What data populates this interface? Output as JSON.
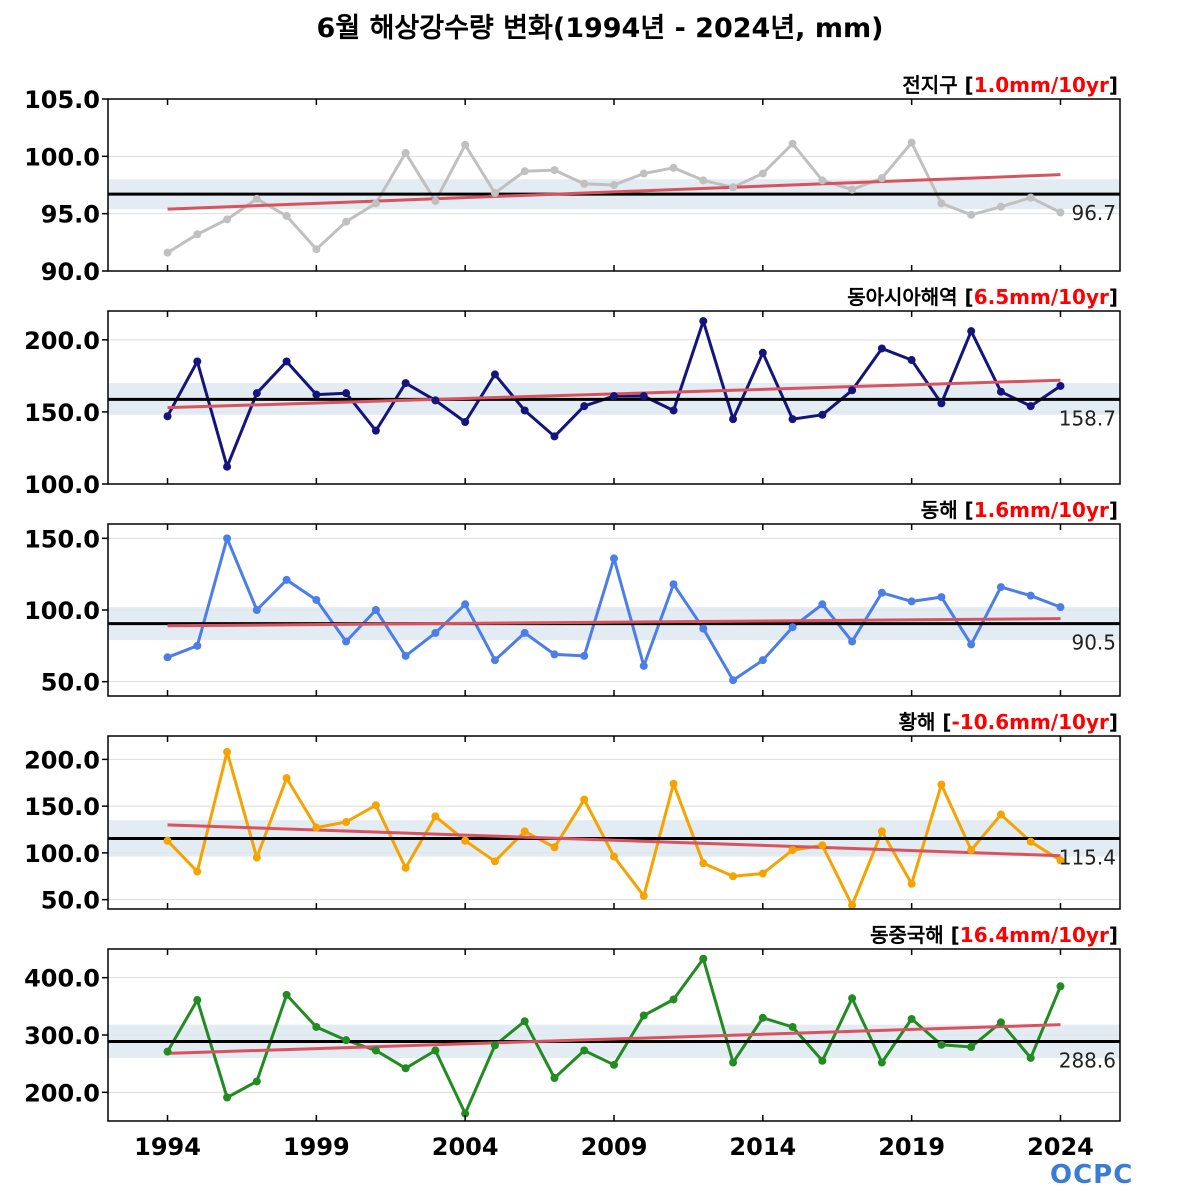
{
  "title": "6월 해상강수량 변화(1994년 - 2024년, mm)",
  "logo": "OCPC",
  "chart_data": {
    "type": "line",
    "x": [
      1994,
      1995,
      1996,
      1997,
      1998,
      1999,
      2000,
      2001,
      2002,
      2003,
      2004,
      2005,
      2006,
      2007,
      2008,
      2009,
      2010,
      2011,
      2012,
      2013,
      2014,
      2015,
      2016,
      2017,
      2018,
      2019,
      2020,
      2021,
      2022,
      2023,
      2024
    ],
    "xticks": [
      "1994",
      "1999",
      "2004",
      "2009",
      "2014",
      "2019",
      "2024"
    ],
    "xtick_values": [
      1994,
      1999,
      2004,
      2009,
      2014,
      2019,
      2024
    ],
    "xlim": [
      1992,
      2026
    ],
    "panels": [
      {
        "name": "전지구",
        "trend": "1.0mm/10yr",
        "color": "#c0c0c0",
        "ylim": [
          90,
          105
        ],
        "yticks": [
          90,
          95,
          100,
          105
        ],
        "ytick_labels": [
          "90.0",
          "95.0",
          "100.0",
          "105.0"
        ],
        "mean": 96.7,
        "mean_label": "96.7",
        "band": [
          95.4,
          98.0
        ],
        "trend_line": [
          95.4,
          98.4
        ],
        "values": [
          91.6,
          93.2,
          94.5,
          96.3,
          94.8,
          91.9,
          94.3,
          95.9,
          100.3,
          96.1,
          101.0,
          96.8,
          98.7,
          98.8,
          97.6,
          97.5,
          98.5,
          99.0,
          97.9,
          97.3,
          98.5,
          101.1,
          97.9,
          97.1,
          98.1,
          101.2,
          95.9,
          94.9,
          95.6,
          96.4,
          95.1
        ]
      },
      {
        "name": "동아시아해역",
        "trend": "6.5mm/10yr",
        "color": "#14147a",
        "ylim": [
          100,
          220
        ],
        "yticks": [
          100,
          150,
          200
        ],
        "ytick_labels": [
          "100.0",
          "150.0",
          "200.0"
        ],
        "mean": 158.7,
        "mean_label": "158.7",
        "band": [
          148,
          170
        ],
        "trend_line": [
          153,
          172
        ],
        "values": [
          147,
          185,
          112,
          163,
          185,
          162,
          163,
          137,
          170,
          158,
          143,
          176,
          151,
          133,
          154,
          161,
          161,
          151,
          213,
          145,
          191,
          145,
          148,
          165,
          194,
          186,
          156,
          206,
          164,
          154,
          168
        ]
      },
      {
        "name": "동해",
        "trend": "1.6mm/10yr",
        "color": "#4c7ee8",
        "ylim": [
          40,
          160
        ],
        "yticks": [
          50,
          100,
          150
        ],
        "ytick_labels": [
          "50.0",
          "100.0",
          "150.0"
        ],
        "mean": 90.5,
        "mean_label": "90.5",
        "band": [
          79,
          102
        ],
        "trend_line": [
          89,
          94
        ],
        "values": [
          67,
          75,
          150,
          100,
          121,
          107,
          78,
          100,
          68,
          84,
          104,
          65,
          84,
          69,
          68,
          136,
          61,
          118,
          87,
          51,
          65,
          88,
          104,
          78,
          112,
          106,
          109,
          76,
          116,
          110,
          102
        ]
      },
      {
        "name": "황해",
        "trend": "-10.6mm/10yr",
        "color": "#f5a300",
        "ylim": [
          40,
          225
        ],
        "yticks": [
          50,
          100,
          150,
          200
        ],
        "ytick_labels": [
          "50.0",
          "100.0",
          "150.0",
          "200.0"
        ],
        "mean": 115.4,
        "mean_label": "115.4",
        "band": [
          96,
          135
        ],
        "trend_line": [
          130,
          97
        ],
        "values": [
          113,
          80,
          208,
          95,
          180,
          127,
          133,
          151,
          84,
          139,
          113,
          91,
          123,
          106,
          157,
          96,
          54,
          174,
          89,
          75,
          78,
          103,
          108,
          44,
          123,
          67,
          173,
          103,
          141,
          112,
          92
        ]
      },
      {
        "name": "동중국해",
        "trend": "16.4mm/10yr",
        "color": "#228b22",
        "ylim": [
          150,
          450
        ],
        "yticks": [
          200,
          300,
          400
        ],
        "ytick_labels": [
          "200.0",
          "300.0",
          "400.0"
        ],
        "mean": 288.6,
        "mean_label": "288.6",
        "band": [
          260,
          318
        ],
        "trend_line": [
          268,
          318
        ],
        "values": [
          271,
          361,
          191,
          219,
          370,
          314,
          291,
          273,
          242,
          273,
          163,
          282,
          324,
          225,
          273,
          248,
          334,
          362,
          433,
          252,
          330,
          314,
          255,
          364,
          252,
          328,
          283,
          279,
          322,
          260,
          385
        ]
      }
    ]
  }
}
